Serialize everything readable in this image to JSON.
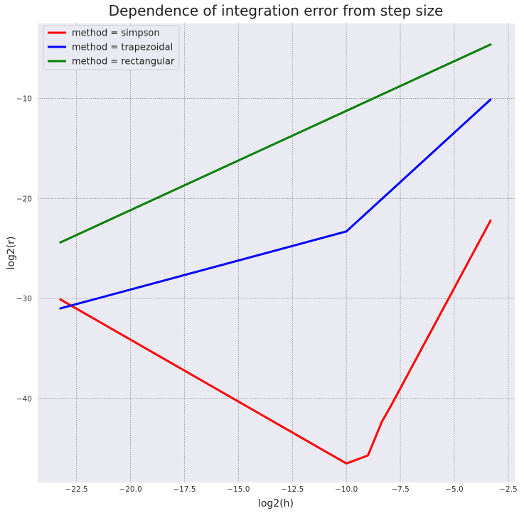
{
  "chart_data": {
    "type": "line",
    "title": "Dependence of integration error from step size",
    "xlabel": "log2(h)",
    "ylabel": "log2(r)",
    "xlim": [
      -24.3,
      -2.2
    ],
    "ylim": [
      -48.4,
      -2.5
    ],
    "xticks": [
      -22.5,
      -20.0,
      -17.5,
      -15.0,
      -12.5,
      -10.0,
      -7.5,
      -5.0,
      -2.5
    ],
    "xtick_labels": [
      "−22.5",
      "−20.0",
      "−17.5",
      "−15.0",
      "−12.5",
      "−10.0",
      "−7.5",
      "−5.0",
      "−2.5"
    ],
    "yticks": [
      -10,
      -20,
      -30,
      -40
    ],
    "ytick_labels": [
      "−10",
      "−20",
      "−30",
      "−40"
    ],
    "grid": true,
    "legend_position": "top-left",
    "background_color": "#eaeaf2",
    "series": [
      {
        "name": "method = simpson",
        "color": "#ff0000",
        "points": [
          [
            -23.25,
            -30.1
          ],
          [
            -10.0,
            -46.5
          ],
          [
            -9.0,
            -45.7
          ],
          [
            -8.35,
            -42.3
          ],
          [
            -7.95,
            -40.8
          ],
          [
            -3.32,
            -22.2
          ]
        ]
      },
      {
        "name": "method = trapezoidal",
        "color": "#0000ff",
        "points": [
          [
            -23.25,
            -31.0
          ],
          [
            -10.0,
            -23.3
          ],
          [
            -3.32,
            -10.1
          ]
        ]
      },
      {
        "name": "method = rectangular",
        "color": "#008000",
        "points": [
          [
            -23.25,
            -24.4
          ],
          [
            -3.32,
            -4.6
          ]
        ]
      }
    ]
  }
}
